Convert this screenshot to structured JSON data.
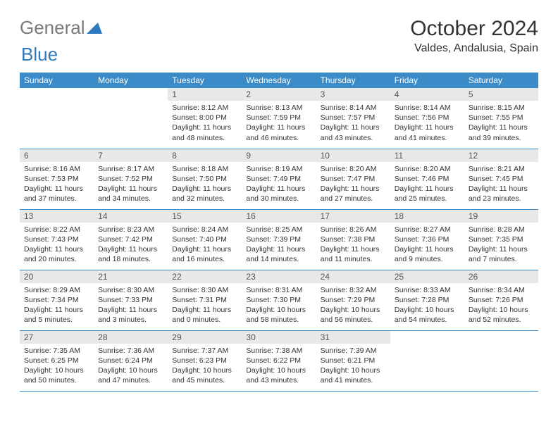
{
  "brand": {
    "part1": "General",
    "part2": "Blue"
  },
  "title": "October 2024",
  "location": "Valdes, Andalusia, Spain",
  "colors": {
    "header_bg": "#3b8bc8",
    "header_text": "#ffffff",
    "daynum_bg": "#e8e8e8",
    "border": "#3b8bc8",
    "logo_gray": "#7a7a7a",
    "logo_blue": "#2f7bbf"
  },
  "weekdays": [
    "Sunday",
    "Monday",
    "Tuesday",
    "Wednesday",
    "Thursday",
    "Friday",
    "Saturday"
  ],
  "weeks": [
    [
      null,
      null,
      {
        "n": "1",
        "sr": "Sunrise: 8:12 AM",
        "ss": "Sunset: 8:00 PM",
        "dl": "Daylight: 11 hours and 48 minutes."
      },
      {
        "n": "2",
        "sr": "Sunrise: 8:13 AM",
        "ss": "Sunset: 7:59 PM",
        "dl": "Daylight: 11 hours and 46 minutes."
      },
      {
        "n": "3",
        "sr": "Sunrise: 8:14 AM",
        "ss": "Sunset: 7:57 PM",
        "dl": "Daylight: 11 hours and 43 minutes."
      },
      {
        "n": "4",
        "sr": "Sunrise: 8:14 AM",
        "ss": "Sunset: 7:56 PM",
        "dl": "Daylight: 11 hours and 41 minutes."
      },
      {
        "n": "5",
        "sr": "Sunrise: 8:15 AM",
        "ss": "Sunset: 7:55 PM",
        "dl": "Daylight: 11 hours and 39 minutes."
      }
    ],
    [
      {
        "n": "6",
        "sr": "Sunrise: 8:16 AM",
        "ss": "Sunset: 7:53 PM",
        "dl": "Daylight: 11 hours and 37 minutes."
      },
      {
        "n": "7",
        "sr": "Sunrise: 8:17 AM",
        "ss": "Sunset: 7:52 PM",
        "dl": "Daylight: 11 hours and 34 minutes."
      },
      {
        "n": "8",
        "sr": "Sunrise: 8:18 AM",
        "ss": "Sunset: 7:50 PM",
        "dl": "Daylight: 11 hours and 32 minutes."
      },
      {
        "n": "9",
        "sr": "Sunrise: 8:19 AM",
        "ss": "Sunset: 7:49 PM",
        "dl": "Daylight: 11 hours and 30 minutes."
      },
      {
        "n": "10",
        "sr": "Sunrise: 8:20 AM",
        "ss": "Sunset: 7:47 PM",
        "dl": "Daylight: 11 hours and 27 minutes."
      },
      {
        "n": "11",
        "sr": "Sunrise: 8:20 AM",
        "ss": "Sunset: 7:46 PM",
        "dl": "Daylight: 11 hours and 25 minutes."
      },
      {
        "n": "12",
        "sr": "Sunrise: 8:21 AM",
        "ss": "Sunset: 7:45 PM",
        "dl": "Daylight: 11 hours and 23 minutes."
      }
    ],
    [
      {
        "n": "13",
        "sr": "Sunrise: 8:22 AM",
        "ss": "Sunset: 7:43 PM",
        "dl": "Daylight: 11 hours and 20 minutes."
      },
      {
        "n": "14",
        "sr": "Sunrise: 8:23 AM",
        "ss": "Sunset: 7:42 PM",
        "dl": "Daylight: 11 hours and 18 minutes."
      },
      {
        "n": "15",
        "sr": "Sunrise: 8:24 AM",
        "ss": "Sunset: 7:40 PM",
        "dl": "Daylight: 11 hours and 16 minutes."
      },
      {
        "n": "16",
        "sr": "Sunrise: 8:25 AM",
        "ss": "Sunset: 7:39 PM",
        "dl": "Daylight: 11 hours and 14 minutes."
      },
      {
        "n": "17",
        "sr": "Sunrise: 8:26 AM",
        "ss": "Sunset: 7:38 PM",
        "dl": "Daylight: 11 hours and 11 minutes."
      },
      {
        "n": "18",
        "sr": "Sunrise: 8:27 AM",
        "ss": "Sunset: 7:36 PM",
        "dl": "Daylight: 11 hours and 9 minutes."
      },
      {
        "n": "19",
        "sr": "Sunrise: 8:28 AM",
        "ss": "Sunset: 7:35 PM",
        "dl": "Daylight: 11 hours and 7 minutes."
      }
    ],
    [
      {
        "n": "20",
        "sr": "Sunrise: 8:29 AM",
        "ss": "Sunset: 7:34 PM",
        "dl": "Daylight: 11 hours and 5 minutes."
      },
      {
        "n": "21",
        "sr": "Sunrise: 8:30 AM",
        "ss": "Sunset: 7:33 PM",
        "dl": "Daylight: 11 hours and 3 minutes."
      },
      {
        "n": "22",
        "sr": "Sunrise: 8:30 AM",
        "ss": "Sunset: 7:31 PM",
        "dl": "Daylight: 11 hours and 0 minutes."
      },
      {
        "n": "23",
        "sr": "Sunrise: 8:31 AM",
        "ss": "Sunset: 7:30 PM",
        "dl": "Daylight: 10 hours and 58 minutes."
      },
      {
        "n": "24",
        "sr": "Sunrise: 8:32 AM",
        "ss": "Sunset: 7:29 PM",
        "dl": "Daylight: 10 hours and 56 minutes."
      },
      {
        "n": "25",
        "sr": "Sunrise: 8:33 AM",
        "ss": "Sunset: 7:28 PM",
        "dl": "Daylight: 10 hours and 54 minutes."
      },
      {
        "n": "26",
        "sr": "Sunrise: 8:34 AM",
        "ss": "Sunset: 7:26 PM",
        "dl": "Daylight: 10 hours and 52 minutes."
      }
    ],
    [
      {
        "n": "27",
        "sr": "Sunrise: 7:35 AM",
        "ss": "Sunset: 6:25 PM",
        "dl": "Daylight: 10 hours and 50 minutes."
      },
      {
        "n": "28",
        "sr": "Sunrise: 7:36 AM",
        "ss": "Sunset: 6:24 PM",
        "dl": "Daylight: 10 hours and 47 minutes."
      },
      {
        "n": "29",
        "sr": "Sunrise: 7:37 AM",
        "ss": "Sunset: 6:23 PM",
        "dl": "Daylight: 10 hours and 45 minutes."
      },
      {
        "n": "30",
        "sr": "Sunrise: 7:38 AM",
        "ss": "Sunset: 6:22 PM",
        "dl": "Daylight: 10 hours and 43 minutes."
      },
      {
        "n": "31",
        "sr": "Sunrise: 7:39 AM",
        "ss": "Sunset: 6:21 PM",
        "dl": "Daylight: 10 hours and 41 minutes."
      },
      null,
      null
    ]
  ]
}
